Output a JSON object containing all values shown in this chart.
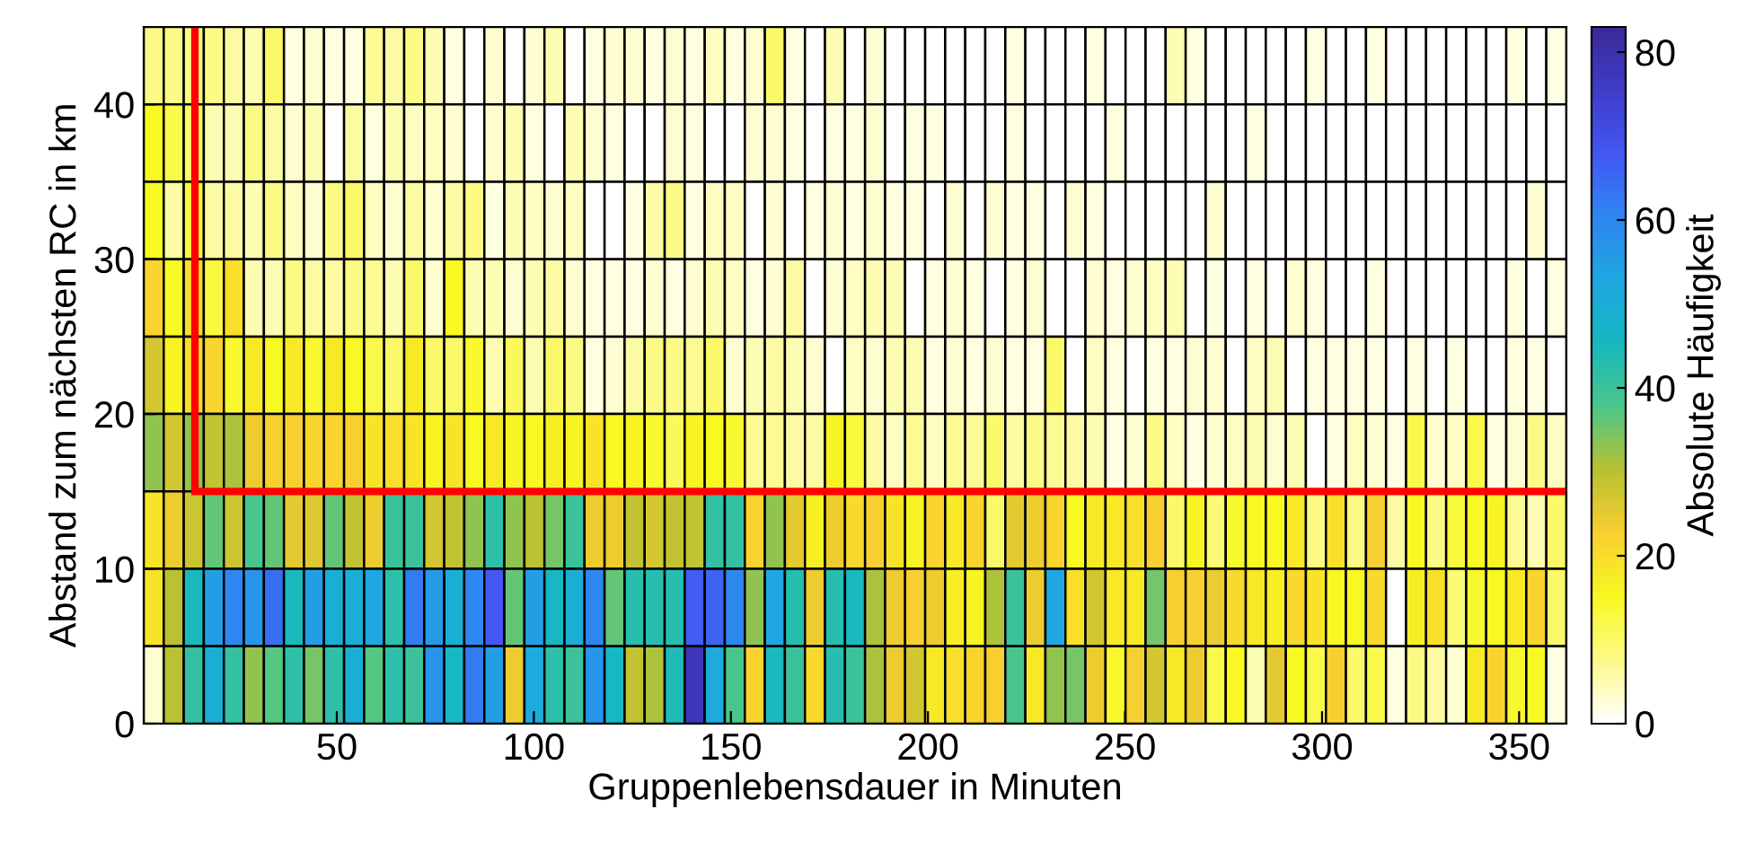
{
  "chart_data": {
    "type": "heatmap",
    "xlabel": "Gruppenlebensdauer in Minuten",
    "ylabel": "Abstand zum nächsten RC in km",
    "clabel": "Absolute Häufigkeit",
    "xlim": [
      1,
      362
    ],
    "xticks": [
      50,
      100,
      150,
      200,
      250,
      300,
      350
    ],
    "ylim": [
      0,
      45
    ],
    "yticks": [
      0,
      10,
      20,
      30,
      40
    ],
    "clim": [
      0,
      83
    ],
    "cticks": [
      0,
      20,
      40,
      60,
      80
    ],
    "colors": [
      "#ffffff",
      "#fbfa88",
      "#f8f820",
      "#f9cf30",
      "#b8c132",
      "#4cc78a",
      "#16b8c0",
      "#1ea8e0",
      "#2e86f0",
      "#4358f4",
      "#3f3cc8",
      "#3a2a9a"
    ],
    "cells": [
      [
        8,
        8,
        8,
        8,
        6,
        5,
        10,
        2,
        3,
        2,
        2,
        7,
        6,
        8,
        5,
        2,
        0,
        3,
        0,
        3,
        5,
        0,
        2,
        3,
        3,
        2,
        3,
        2,
        4,
        2,
        3,
        10,
        2,
        0,
        5,
        0,
        3,
        0,
        0,
        0,
        0,
        0,
        0,
        2,
        0,
        0,
        0,
        2,
        0,
        0,
        0,
        5,
        2,
        0,
        0,
        0,
        0,
        0,
        2,
        0,
        0,
        2,
        0,
        0,
        0,
        0,
        0,
        0,
        2,
        0,
        2
      ],
      [
        15,
        12,
        10,
        5,
        5,
        8,
        6,
        3,
        5,
        0,
        6,
        2,
        5,
        4,
        4,
        3,
        0,
        3,
        5,
        2,
        0,
        5,
        3,
        2,
        0,
        0,
        3,
        2,
        0,
        0,
        3,
        3,
        2,
        0,
        2,
        2,
        3,
        0,
        2,
        2,
        0,
        0,
        0,
        2,
        0,
        0,
        0,
        0,
        2,
        0,
        0,
        0,
        0,
        0,
        0,
        2,
        0,
        0,
        0,
        0,
        0,
        0,
        0,
        0,
        0,
        0,
        0,
        0,
        0,
        0,
        0
      ],
      [
        15,
        6,
        13,
        6,
        6,
        5,
        8,
        4,
        3,
        8,
        10,
        4,
        3,
        6,
        3,
        6,
        8,
        2,
        5,
        4,
        3,
        4,
        0,
        0,
        2,
        6,
        8,
        2,
        4,
        4,
        0,
        3,
        0,
        2,
        3,
        2,
        3,
        2,
        2,
        0,
        3,
        0,
        3,
        2,
        2,
        0,
        3,
        2,
        0,
        0,
        0,
        0,
        0,
        3,
        0,
        0,
        0,
        0,
        0,
        0,
        0,
        0,
        0,
        0,
        0,
        0,
        0,
        0,
        0,
        3,
        0
      ],
      [
        22,
        15,
        20,
        13,
        20,
        5,
        5,
        8,
        6,
        6,
        8,
        7,
        5,
        10,
        3,
        15,
        5,
        5,
        3,
        5,
        6,
        3,
        2,
        2,
        2,
        3,
        2,
        3,
        5,
        4,
        2,
        3,
        6,
        0,
        3,
        4,
        5,
        5,
        0,
        2,
        3,
        2,
        0,
        2,
        3,
        0,
        0,
        3,
        2,
        3,
        4,
        5,
        0,
        2,
        0,
        2,
        0,
        3,
        2,
        0,
        0,
        2,
        0,
        0,
        0,
        0,
        0,
        0,
        2,
        0,
        2
      ],
      [
        27,
        16,
        20,
        22,
        14,
        18,
        15,
        18,
        14,
        18,
        15,
        12,
        10,
        18,
        10,
        10,
        14,
        5,
        11,
        5,
        10,
        8,
        2,
        3,
        6,
        8,
        8,
        7,
        10,
        3,
        5,
        6,
        5,
        3,
        0,
        4,
        3,
        5,
        5,
        2,
        3,
        2,
        3,
        2,
        2,
        10,
        0,
        4,
        2,
        0,
        2,
        2,
        3,
        3,
        0,
        4,
        5,
        0,
        2,
        2,
        2,
        2,
        0,
        2,
        0,
        2,
        0,
        0,
        2,
        2,
        0
      ],
      [
        33,
        27,
        33,
        29,
        31,
        24,
        23,
        23,
        22,
        22,
        23,
        19,
        20,
        19,
        16,
        19,
        15,
        18,
        16,
        15,
        17,
        16,
        19,
        15,
        16,
        14,
        11,
        16,
        15,
        14,
        7,
        7,
        6,
        6,
        16,
        13,
        6,
        4,
        7,
        4,
        7,
        7,
        10,
        6,
        8,
        7,
        6,
        5,
        2,
        3,
        8,
        4,
        2,
        3,
        4,
        5,
        3,
        5,
        0,
        2,
        4,
        3,
        2,
        12,
        3,
        4,
        12,
        2,
        3,
        8,
        4
      ],
      [
        19,
        24,
        28,
        36,
        28,
        38,
        36,
        25,
        26,
        36,
        29,
        24,
        40,
        40,
        27,
        29,
        33,
        42,
        33,
        30,
        35,
        40,
        24,
        24,
        29,
        27,
        29,
        29,
        41,
        41,
        22,
        33,
        25,
        17,
        24,
        21,
        23,
        19,
        16,
        22,
        18,
        22,
        10,
        25,
        24,
        22,
        15,
        18,
        18,
        20,
        23,
        10,
        16,
        9,
        14,
        15,
        15,
        18,
        8,
        20,
        8,
        23,
        6,
        15,
        8,
        13,
        15,
        16,
        7,
        5,
        10
      ],
      [
        19,
        30,
        45,
        55,
        60,
        57,
        64,
        45,
        55,
        50,
        50,
        53,
        42,
        62,
        56,
        50,
        60,
        68,
        36,
        55,
        46,
        50,
        60,
        36,
        43,
        43,
        43,
        67,
        66,
        60,
        33,
        53,
        43,
        24,
        43,
        45,
        31,
        24,
        23,
        24,
        17,
        16,
        31,
        40,
        24,
        53,
        20,
        27,
        18,
        18,
        35,
        23,
        23,
        24,
        21,
        18,
        17,
        21,
        19,
        15,
        15,
        21,
        0,
        17,
        20,
        9,
        14,
        15,
        18,
        22,
        10
      ],
      [
        3,
        30,
        41,
        50,
        41,
        33,
        37,
        42,
        35,
        42,
        50,
        37,
        42,
        40,
        57,
        46,
        62,
        55,
        24,
        52,
        42,
        40,
        57,
        46,
        29,
        31,
        44,
        78,
        52,
        38,
        22,
        45,
        40,
        21,
        43,
        40,
        31,
        24,
        27,
        18,
        20,
        22,
        23,
        38,
        18,
        33,
        35,
        24,
        14,
        23,
        27,
        18,
        24,
        12,
        15,
        5,
        25,
        15,
        12,
        23,
        10,
        12,
        2,
        8,
        6,
        3,
        18,
        22,
        14,
        15,
        2
      ]
    ],
    "ref_lines": [
      {
        "axis": "x",
        "value": 14,
        "color": "#ff0000"
      },
      {
        "axis": "y",
        "value": 15,
        "color": "#ff0000"
      }
    ]
  }
}
